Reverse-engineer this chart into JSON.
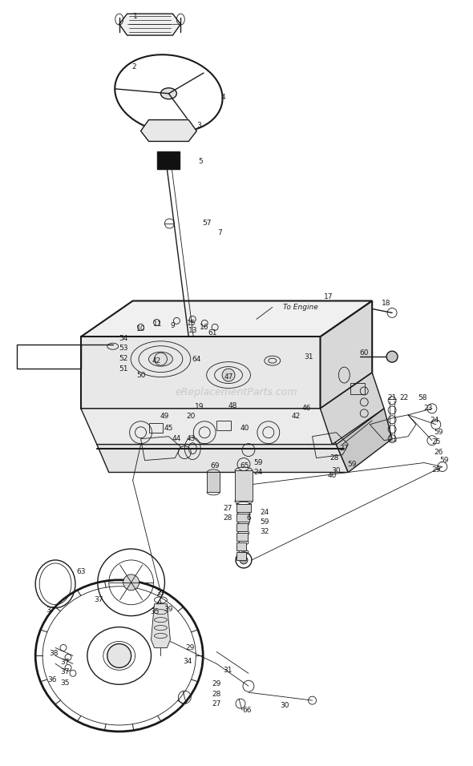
{
  "bg_color": "#ffffff",
  "line_color": "#1a1a1a",
  "label_color": "#1a1a1a",
  "watermark": "eReplacementParts.com",
  "fig_width": 5.9,
  "fig_height": 9.56,
  "dpi": 100
}
